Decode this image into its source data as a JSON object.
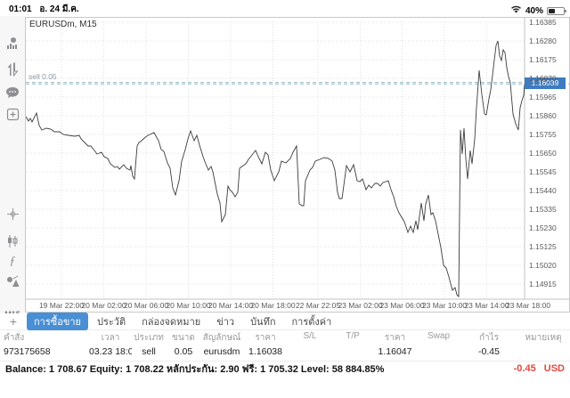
{
  "status_bar": {
    "time": "01:01",
    "date": "อ. 24 มี.ค.",
    "battery_percent": "40%"
  },
  "sidebar": {
    "timeframe": "M15",
    "icons": [
      "quotes",
      "trade-arrows",
      "chat",
      "new-order",
      "crosshair",
      "candlestick",
      "function",
      "objects"
    ]
  },
  "chart": {
    "title": "EURUSDm, M15",
    "sell_label": "sell 0.05",
    "current_price": "1.16039"
  },
  "chart_data": {
    "type": "line",
    "title": "EURUSDm, M15",
    "symbol": "EURUSDm",
    "timeframe": "M15",
    "legend": "off",
    "grid": "dotted",
    "y_axis": {
      "min": 1.14915,
      "max": 1.16385,
      "step": 0.00105,
      "side": "right"
    },
    "y_ticks": [
      1.16385,
      1.1628,
      1.16175,
      1.1607,
      1.15965,
      1.1586,
      1.15755,
      1.1565,
      1.15545,
      1.1544,
      1.15335,
      1.1523,
      1.15125,
      1.1502,
      1.14915
    ],
    "x_ticks": [
      "19 Mar 22:00",
      "20 Mar 02:00",
      "20 Mar 06:00",
      "20 Mar 10:00",
      "20 Mar 14:00",
      "20 Mar 18:00",
      "22 Mar 22:05",
      "23 Mar 02:00",
      "23 Mar 06:00",
      "23 Mar 10:00",
      "23 Mar 14:00",
      "23 Mar 18:00"
    ],
    "sell_order": {
      "label": "sell 0.05",
      "type": "sell",
      "volume": 0.05,
      "price_open": 1.16038,
      "price_current": 1.16047
    },
    "current_price": 1.16039,
    "x_unit": "px-along-plot",
    "series": [
      {
        "name": "EURUSDm close",
        "points": [
          [
            0,
            1.15855
          ],
          [
            3,
            1.1583
          ],
          [
            5,
            1.15845
          ],
          [
            7,
            1.15825
          ],
          [
            12,
            1.15875
          ],
          [
            15,
            1.15805
          ],
          [
            18,
            1.1578
          ],
          [
            23,
            1.1579
          ],
          [
            28,
            1.15785
          ],
          [
            32,
            1.1577
          ],
          [
            38,
            1.1577
          ],
          [
            42,
            1.15755
          ],
          [
            48,
            1.1575
          ],
          [
            55,
            1.15745
          ],
          [
            60,
            1.1575
          ],
          [
            62,
            1.1573
          ],
          [
            67,
            1.15705
          ],
          [
            70,
            1.1569
          ],
          [
            73,
            1.1569
          ],
          [
            77,
            1.15665
          ],
          [
            80,
            1.15645
          ],
          [
            85,
            1.15655
          ],
          [
            88,
            1.1563
          ],
          [
            92,
            1.1562
          ],
          [
            95,
            1.1559
          ],
          [
            100,
            1.1557
          ],
          [
            103,
            1.15575
          ],
          [
            105,
            1.1556
          ],
          [
            110,
            1.15585
          ],
          [
            113,
            1.15565
          ],
          [
            117,
            1.15555
          ],
          [
            118,
            1.1558
          ],
          [
            120,
            1.1552
          ],
          [
            122,
            1.15505
          ],
          [
            123,
            1.1557
          ],
          [
            125,
            1.1569
          ],
          [
            127,
            1.1571
          ],
          [
            129,
            1.15715
          ],
          [
            132,
            1.1573
          ],
          [
            137,
            1.1575
          ],
          [
            144,
            1.15765
          ],
          [
            149,
            1.1572
          ],
          [
            152,
            1.1567
          ],
          [
            155,
            1.1566
          ],
          [
            159,
            1.15595
          ],
          [
            162,
            1.15565
          ],
          [
            165,
            1.15455
          ],
          [
            168,
            1.15415
          ],
          [
            172,
            1.15495
          ],
          [
            175,
            1.15605
          ],
          [
            179,
            1.1567
          ],
          [
            182,
            1.1573
          ],
          [
            185,
            1.15775
          ],
          [
            189,
            1.1572
          ],
          [
            192,
            1.1575
          ],
          [
            195,
            1.15695
          ],
          [
            199,
            1.1563
          ],
          [
            202,
            1.1559
          ],
          [
            205,
            1.15555
          ],
          [
            208,
            1.15575
          ],
          [
            210,
            1.15545
          ],
          [
            212,
            1.15495
          ],
          [
            215,
            1.1542
          ],
          [
            218,
            1.1537
          ],
          [
            220,
            1.15265
          ],
          [
            224,
            1.15305
          ],
          [
            227,
            1.15465
          ],
          [
            229,
            1.15445
          ],
          [
            232,
            1.1543
          ],
          [
            235,
            1.15405
          ],
          [
            238,
            1.1543
          ],
          [
            240,
            1.15565
          ],
          [
            244,
            1.1558
          ],
          [
            247,
            1.1559
          ],
          [
            250,
            1.15615
          ],
          [
            254,
            1.1564
          ],
          [
            258,
            1.15665
          ],
          [
            262,
            1.1562
          ],
          [
            265,
            1.1559
          ],
          [
            269,
            1.15655
          ],
          [
            272,
            1.1564
          ],
          [
            275,
            1.15555
          ],
          [
            279,
            1.15495
          ],
          [
            284,
            1.15545
          ],
          [
            287,
            1.15605
          ],
          [
            292,
            1.15595
          ],
          [
            297,
            1.1562
          ],
          [
            300,
            1.15655
          ],
          [
            304,
            1.1569
          ],
          [
            307,
            1.15365
          ],
          [
            310,
            1.15355
          ],
          [
            312,
            1.15355
          ],
          [
            314,
            1.15495
          ],
          [
            319,
            1.15555
          ],
          [
            322,
            1.1557
          ],
          [
            325,
            1.15605
          ],
          [
            330,
            1.15615
          ],
          [
            335,
            1.15625
          ],
          [
            340,
            1.1562
          ],
          [
            344,
            1.15605
          ],
          [
            347,
            1.15555
          ],
          [
            350,
            1.1543
          ],
          [
            352,
            1.15395
          ],
          [
            355,
            1.15395
          ],
          [
            358,
            1.15505
          ],
          [
            360,
            1.1558
          ],
          [
            364,
            1.15545
          ],
          [
            368,
            1.15585
          ],
          [
            372,
            1.15495
          ],
          [
            375,
            1.1549
          ],
          [
            378,
            1.15505
          ],
          [
            382,
            1.15445
          ],
          [
            385,
            1.1547
          ],
          [
            388,
            1.15455
          ],
          [
            392,
            1.1548
          ],
          [
            395,
            1.1548
          ],
          [
            398,
            1.15465
          ],
          [
            401,
            1.15485
          ],
          [
            404,
            1.1549
          ],
          [
            407,
            1.15495
          ],
          [
            410,
            1.15445
          ],
          [
            413,
            1.15405
          ],
          [
            416,
            1.1535
          ],
          [
            419,
            1.15315
          ],
          [
            422,
            1.1529
          ],
          [
            425,
            1.15265
          ],
          [
            429,
            1.15205
          ],
          [
            432,
            1.1524
          ],
          [
            435,
            1.15205
          ],
          [
            438,
            1.1527
          ],
          [
            440,
            1.1522
          ],
          [
            444,
            1.1537
          ],
          [
            447,
            1.1527
          ],
          [
            449,
            1.15365
          ],
          [
            452,
            1.15415
          ],
          [
            455,
            1.15305
          ],
          [
            457,
            1.15315
          ],
          [
            460,
            1.1527
          ],
          [
            464,
            1.1517
          ],
          [
            466,
            1.1512
          ],
          [
            469,
            1.1502
          ],
          [
            472,
            1.15005
          ],
          [
            475,
            1.14955
          ],
          [
            479,
            1.1488
          ],
          [
            482,
            1.14895
          ],
          [
            484,
            1.14855
          ],
          [
            486,
            1.14845
          ],
          [
            488,
            1.1578
          ],
          [
            490,
            1.15645
          ],
          [
            492,
            1.1579
          ],
          [
            494,
            1.1562
          ],
          [
            496,
            1.15505
          ],
          [
            499,
            1.15665
          ],
          [
            501,
            1.1559
          ],
          [
            504,
            1.1573
          ],
          [
            506,
            1.15905
          ],
          [
            509,
            1.16115
          ],
          [
            512,
            1.1598
          ],
          [
            515,
            1.1587
          ],
          [
            517,
            1.15865
          ],
          [
            520,
            1.15955
          ],
          [
            522,
            1.16005
          ],
          [
            525,
            1.1613
          ],
          [
            528,
            1.16255
          ],
          [
            530,
            1.1628
          ],
          [
            532,
            1.16195
          ],
          [
            534,
            1.1617
          ],
          [
            536,
            1.1623
          ],
          [
            538,
            1.16215
          ],
          [
            540,
            1.1613
          ],
          [
            542,
            1.1608
          ],
          [
            544,
            1.16045
          ],
          [
            547,
            1.1587
          ],
          [
            550,
            1.15815
          ],
          [
            553,
            1.1578
          ],
          [
            555,
            1.15905
          ],
          [
            557,
            1.15945
          ],
          [
            559,
            1.15975
          ],
          [
            560,
            1.16039
          ]
        ]
      }
    ]
  },
  "tabs": {
    "selected": "การซื้อขาย",
    "items": [
      "การซื้อขาย",
      "ประวัติ",
      "กล่องจดหมาย",
      "ข่าว",
      "บันทึก",
      "การตั้งค่า"
    ],
    "add_label": "+"
  },
  "trade_table": {
    "headers": [
      "คำสั่ง",
      "เวลา",
      "ประเภท",
      "ขนาด",
      "สัญลักษณ์",
      "ราคา",
      "S/L",
      "T/P",
      "ราคา",
      "Swap",
      "กำไร",
      "หมายเหตุ"
    ],
    "row": {
      "order": "973175658",
      "time": "03.23 18:01",
      "type": "sell",
      "size": "0.05",
      "symbol": "eurusdm",
      "price_open": "1.16038",
      "sl": "",
      "tp": "",
      "price_current": "1.16047",
      "swap": "",
      "profit": "-0.45",
      "comment": ""
    }
  },
  "account": {
    "items": [
      {
        "label": "Balance:",
        "value": "1 708.67"
      },
      {
        "label": "Equity:",
        "value": "1 708.22"
      },
      {
        "label": "หลักประกัน:",
        "value": "2.90"
      },
      {
        "label": "ฟรี:",
        "value": "1 705.32"
      },
      {
        "label": "Level:",
        "value": "58 884.85%"
      }
    ],
    "profit": "-0.45",
    "currency": "USD"
  },
  "colors": {
    "accent_blue": "#4a8fd4",
    "price_tag_blue": "#3e7cc0",
    "loss_red": "#e0493f",
    "line": "#3c3c3c",
    "grid": "#dde1e4",
    "sell_line": "#9cbcca"
  }
}
